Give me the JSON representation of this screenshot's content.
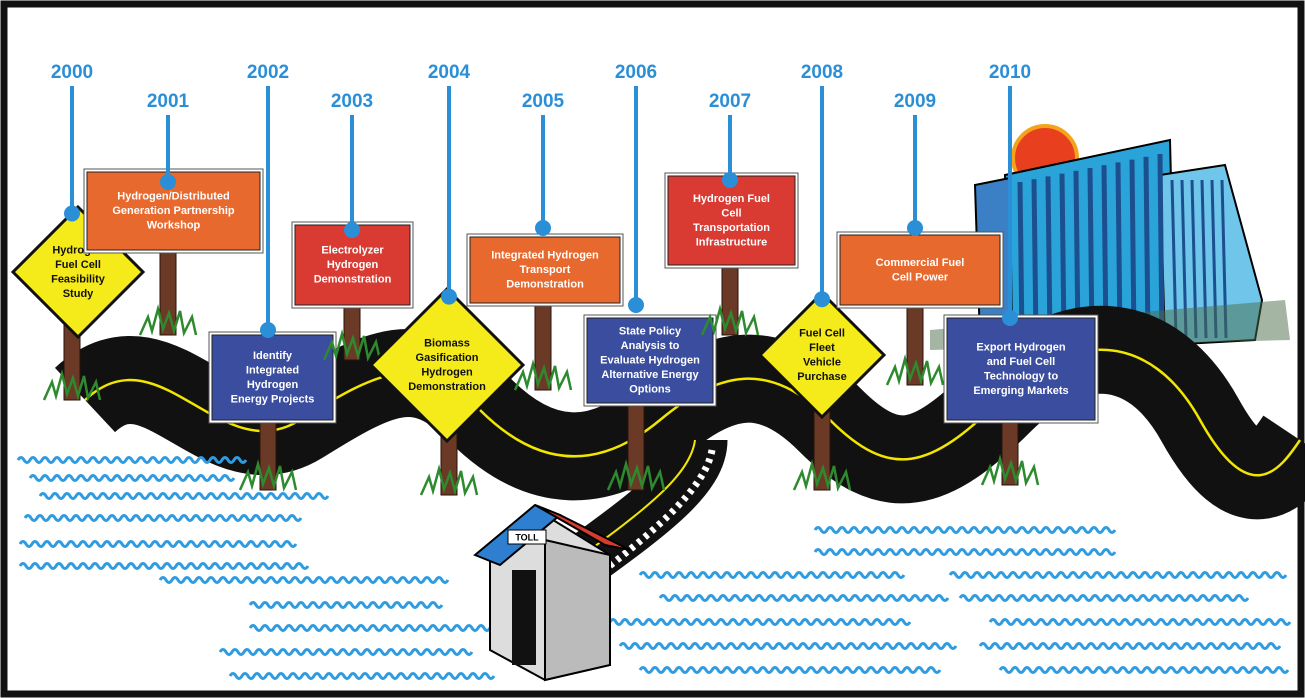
{
  "timeline": [
    {
      "year": "2000",
      "lines": [
        "Hydrogen",
        "Fuel Cell",
        "Feasibility",
        "Study"
      ]
    },
    {
      "year": "2001",
      "lines": [
        "Hydrogen/Distributed",
        "Generation Partnership",
        "Workshop"
      ]
    },
    {
      "year": "2002",
      "lines": [
        "Identify",
        "Integrated",
        "Hydrogen",
        "Energy Projects"
      ]
    },
    {
      "year": "2003",
      "lines": [
        "Electrolyzer",
        "Hydrogen",
        "Demonstration"
      ]
    },
    {
      "year": "2004",
      "lines": [
        "Biomass",
        "Gasification",
        "Hydrogen",
        "Demonstration"
      ]
    },
    {
      "year": "2005",
      "lines": [
        "Integrated Hydrogen",
        "Transport",
        "Demonstration"
      ]
    },
    {
      "year": "2006",
      "lines": [
        "State Policy",
        "Analysis to",
        "Evaluate Hydrogen",
        "Alternative Energy",
        "Options"
      ]
    },
    {
      "year": "2007",
      "lines": [
        "Hydrogen Fuel",
        "Cell",
        "Transportation",
        "Infrastructure"
      ]
    },
    {
      "year": "2008",
      "lines": [
        "Fuel Cell",
        "Fleet",
        "Vehicle",
        "Purchase"
      ]
    },
    {
      "year": "2009",
      "lines": [
        "Commercial Fuel",
        "Cell Power"
      ]
    },
    {
      "year": "2010",
      "lines": [
        "Export Hydrogen",
        "and Fuel Cell",
        "Technology to",
        "Emerging Markets"
      ]
    }
  ],
  "toll_label": "TOLL"
}
